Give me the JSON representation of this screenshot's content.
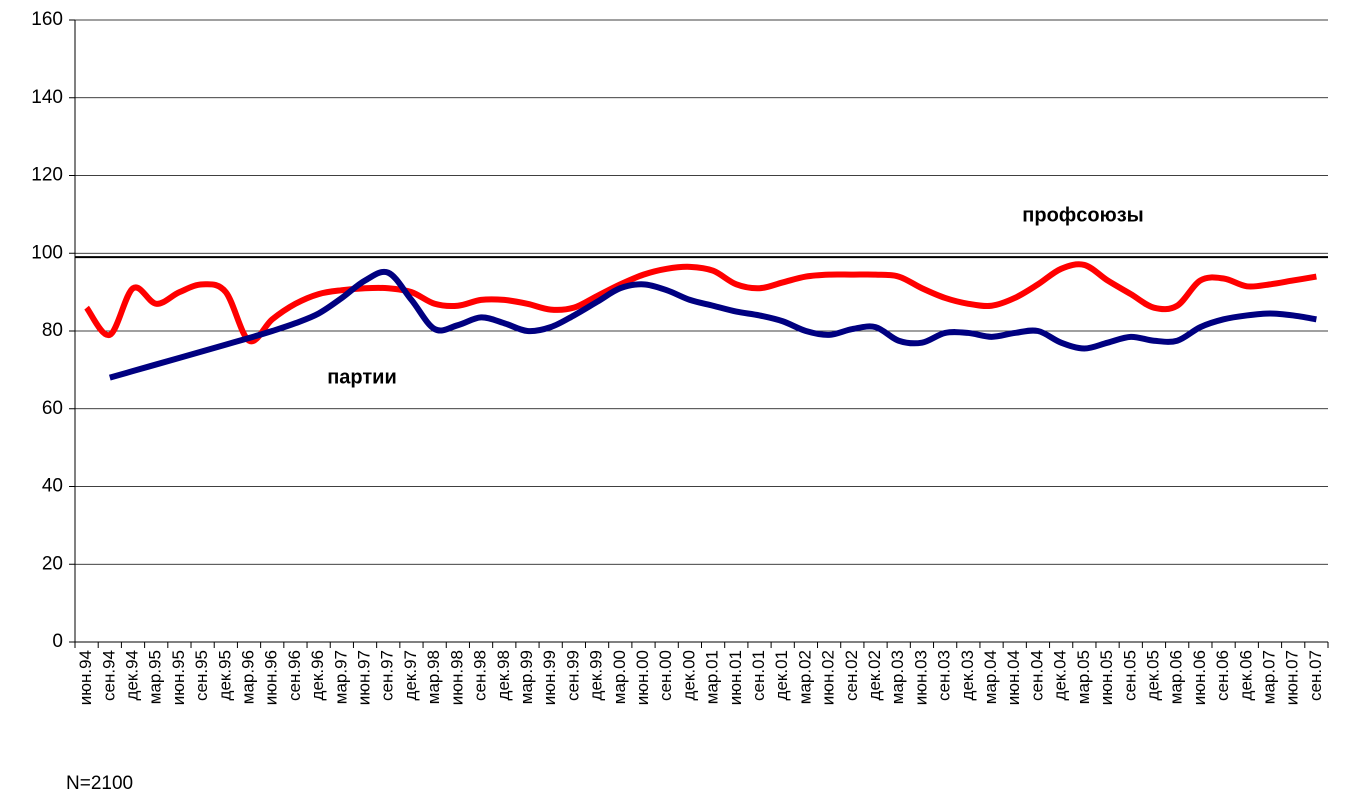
{
  "chart_data": {
    "type": "line",
    "categories": [
      "июн.94",
      "сен.94",
      "дек.94",
      "мар.95",
      "июн.95",
      "сен.95",
      "дек.95",
      "мар.96",
      "июн.96",
      "сен.96",
      "дек.96",
      "мар.97",
      "июн.97",
      "сен.97",
      "дек.97",
      "мар.98",
      "июн.98",
      "сен.98",
      "дек.98",
      "мар.99",
      "июн.99",
      "сен.99",
      "дек.99",
      "мар.00",
      "июн.00",
      "сен.00",
      "дек.00",
      "мар.01",
      "июн.01",
      "сен.01",
      "дек.01",
      "мар.02",
      "июн.02",
      "сен.02",
      "дек.02",
      "мар.03",
      "июн.03",
      "сен.03",
      "дек.03",
      "мар.04",
      "июн.04",
      "сен.04",
      "дек.04",
      "мар.05",
      "июн.05",
      "сен.05",
      "дек.05",
      "мар.06",
      "июн.06",
      "сен.06",
      "дек.06",
      "мар.07",
      "июн.07",
      "сен.07"
    ],
    "series": [
      {
        "color": "#ff0000",
        "values": [
          86,
          79,
          91,
          87,
          90,
          92,
          90,
          77.5,
          83,
          87,
          89.5,
          90.5,
          91,
          91,
          90,
          87,
          86.5,
          88,
          88,
          87,
          85.5,
          86,
          89,
          92,
          94.5,
          96,
          96.5,
          95.5,
          92,
          91,
          92.5,
          94,
          94.5,
          94.5,
          94.5,
          94,
          91,
          88.5,
          87,
          86.5,
          88.5,
          92,
          96,
          97,
          93,
          89.5,
          86,
          86.5,
          93,
          93.5,
          91.5,
          92,
          93,
          94
        ]
      },
      {
        "color": "#000080",
        "values": [
          null,
          68,
          69.7,
          71.4,
          73.1,
          74.8,
          76.5,
          78.2,
          80,
          82,
          84.5,
          88.5,
          93,
          95,
          88,
          80.5,
          81.5,
          83.5,
          82,
          80,
          81,
          84,
          87.5,
          91,
          92,
          90.5,
          88,
          86.5,
          85,
          84,
          82.5,
          80,
          79,
          80.5,
          81,
          77.5,
          77,
          79.5,
          79.5,
          78.5,
          79.5,
          80,
          77,
          75.5,
          77,
          78.5,
          77.5,
          77.5,
          81,
          83,
          84,
          84.5,
          84,
          83
        ]
      }
    ],
    "reference_line": 99,
    "ylim": [
      0,
      160
    ],
    "yticks": [
      0,
      20,
      40,
      60,
      80,
      100,
      120,
      140,
      160
    ],
    "grid": true,
    "annotations": [
      "профсоюзы",
      "партии",
      "N=2100"
    ]
  }
}
